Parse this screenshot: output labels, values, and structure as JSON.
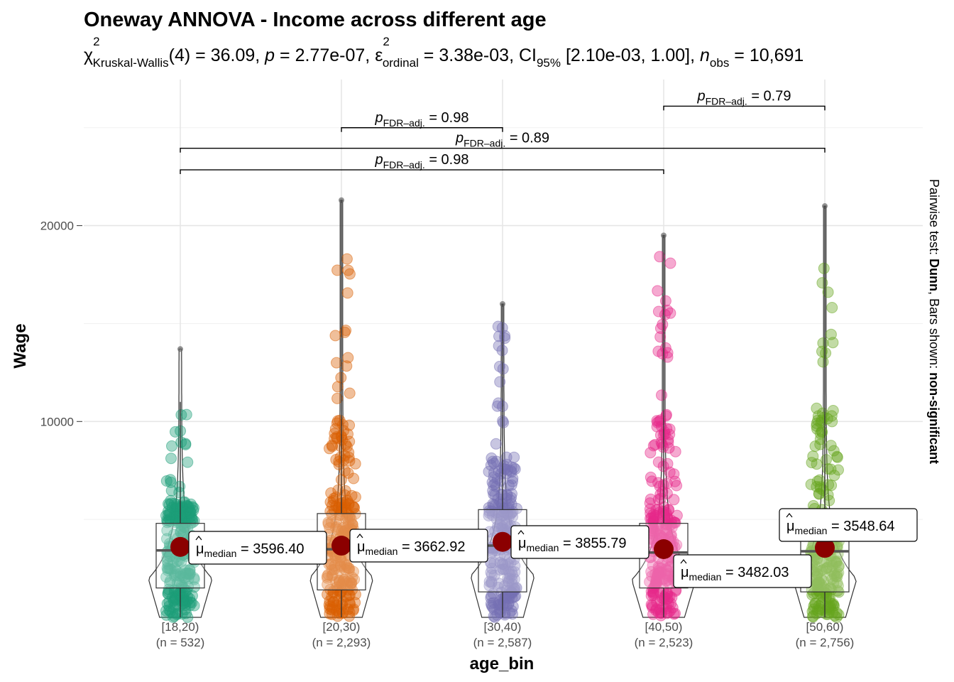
{
  "chart_data": {
    "type": "violin",
    "title": "Oneway ANNOVA - Income across different age",
    "subtitle": {
      "stat_symbol": "χ",
      "stat_sup": "2",
      "stat_sub": "Kruskal-Wallis",
      "df": "(4)",
      "stat_value": "36.09",
      "p_label": "p",
      "p_value": "2.77e-07",
      "effect_symbol": "ε",
      "effect_sup": "2",
      "effect_sub": "ordinal",
      "effect_value": "3.38e-03",
      "ci_label": "CI",
      "ci_sub": "95%",
      "ci_value": "[2.10e-03, 1.00]",
      "n_label": "n",
      "n_sub": "obs",
      "n_value": "10,691"
    },
    "xlabel": "age_bin",
    "ylabel": "Wage",
    "ylim": [
      0,
      27000
    ],
    "yticks": [
      10000,
      20000
    ],
    "grid": true,
    "caption_prefix": "Pairwise test: ",
    "caption_test": "Dunn",
    "caption_mid": ", Bars shown: ",
    "caption_bars": "non-significant",
    "groups": [
      {
        "label": "[18,20)",
        "n_label": "(n = 532)",
        "color": "#1b9e77",
        "median": 3596.4,
        "median_text": "3596.40",
        "q1": 1500,
        "q3": 4800,
        "whisker_low": 0,
        "whisker_high": 11000,
        "max": 13700,
        "spread_max": 10700
      },
      {
        "label": "[20,30)",
        "n_label": "(n = 2,293)",
        "color": "#d95f02",
        "median": 3662.92,
        "median_text": "3662.92",
        "q1": 1400,
        "q3": 5300,
        "whisker_low": 0,
        "whisker_high": 21300,
        "max": 21300,
        "spread_max": 18300
      },
      {
        "label": "[30,40)",
        "n_label": "(n = 2,587)",
        "color": "#7570b3",
        "median": 3855.79,
        "median_text": "3855.79",
        "q1": 1300,
        "q3": 5500,
        "whisker_low": 0,
        "whisker_high": 16000,
        "max": 16000,
        "spread_max": 15000
      },
      {
        "label": "[40,50)",
        "n_label": "(n = 2,523)",
        "color": "#e7298a",
        "median": 3482.03,
        "median_text": "3482.03",
        "q1": 1500,
        "q3": 4800,
        "whisker_low": 0,
        "whisker_high": 19500,
        "max": 19500,
        "spread_max": 18500
      },
      {
        "label": "[50,60)",
        "n_label": "(n = 2,756)",
        "color": "#66a61e",
        "median": 3548.64,
        "median_text": "3548.64",
        "q1": 1300,
        "q3": 4500,
        "whisker_low": 0,
        "whisker_high": 21000,
        "max": 21000,
        "spread_max": 19000
      }
    ],
    "pairwise": [
      {
        "from": 1,
        "to": 2,
        "label": "0.98",
        "y": 25000
      },
      {
        "from": 3,
        "to": 4,
        "label": "0.79",
        "y": 26100
      },
      {
        "from": 0,
        "to": 4,
        "label": "0.89",
        "y": 23950
      },
      {
        "from": 0,
        "to": 3,
        "label": "0.98",
        "y": 22850
      }
    ],
    "pairwise_p_label": "p",
    "pairwise_p_sub": "FDR–adj.",
    "median_label_mu": "μ",
    "median_label_sub": "median",
    "median_color": "#8b0000"
  }
}
